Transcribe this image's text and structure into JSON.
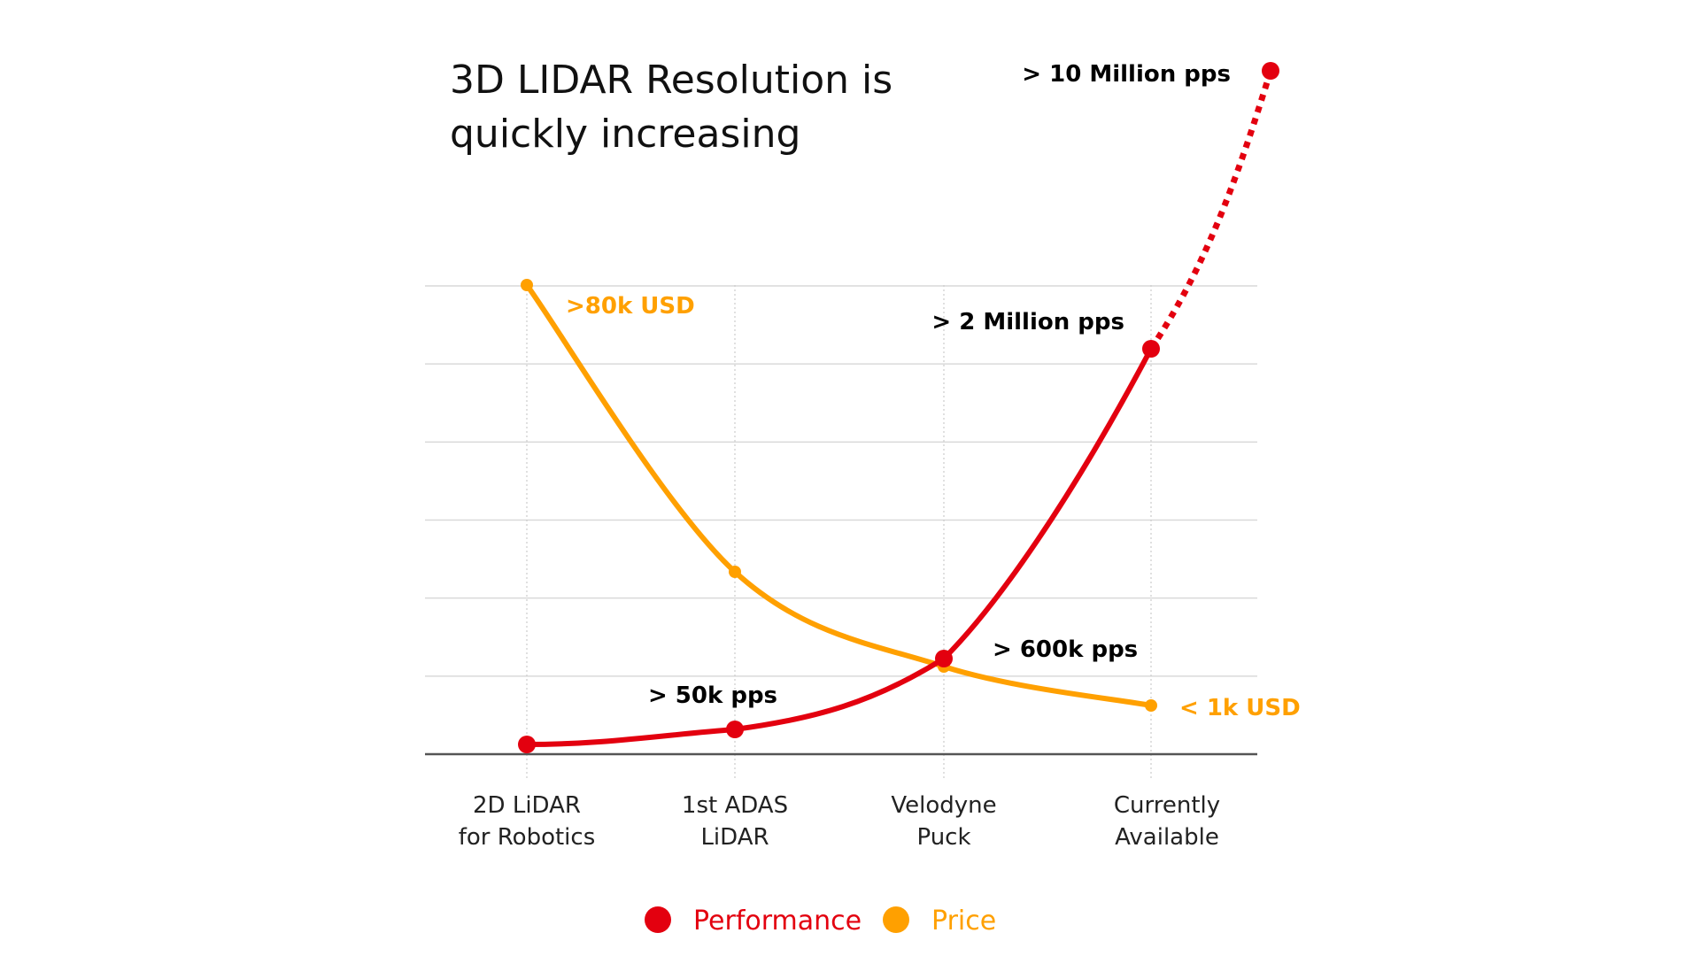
{
  "chart_data": {
    "type": "line",
    "title": "3D LIDAR Resolution is quickly increasing",
    "xlabel": "",
    "ylabel": "",
    "grid": true,
    "legend_position": "bottom-center",
    "categories": [
      "2D LiDAR for Robotics",
      "1st ADAS LiDAR",
      "Velodyne Puck",
      "Currently Available"
    ],
    "series": [
      {
        "name": "Performance",
        "color": "#e3000f",
        "values": [
          0.12,
          0.45,
          1.8,
          7.8
        ],
        "projection": {
          "value": 13.0,
          "style": "dotted"
        },
        "labels": [
          "",
          "> 50k pps",
          "> 600k pps",
          "> 2 Million pps"
        ],
        "projection_label": "> 10 Million pps"
      },
      {
        "name": "Price",
        "color": "#ffa000",
        "values": [
          12.0,
          3.9,
          1.75,
          0.9
        ],
        "labels": [
          ">80k USD",
          "",
          "",
          "< 1k USD"
        ]
      }
    ]
  }
}
